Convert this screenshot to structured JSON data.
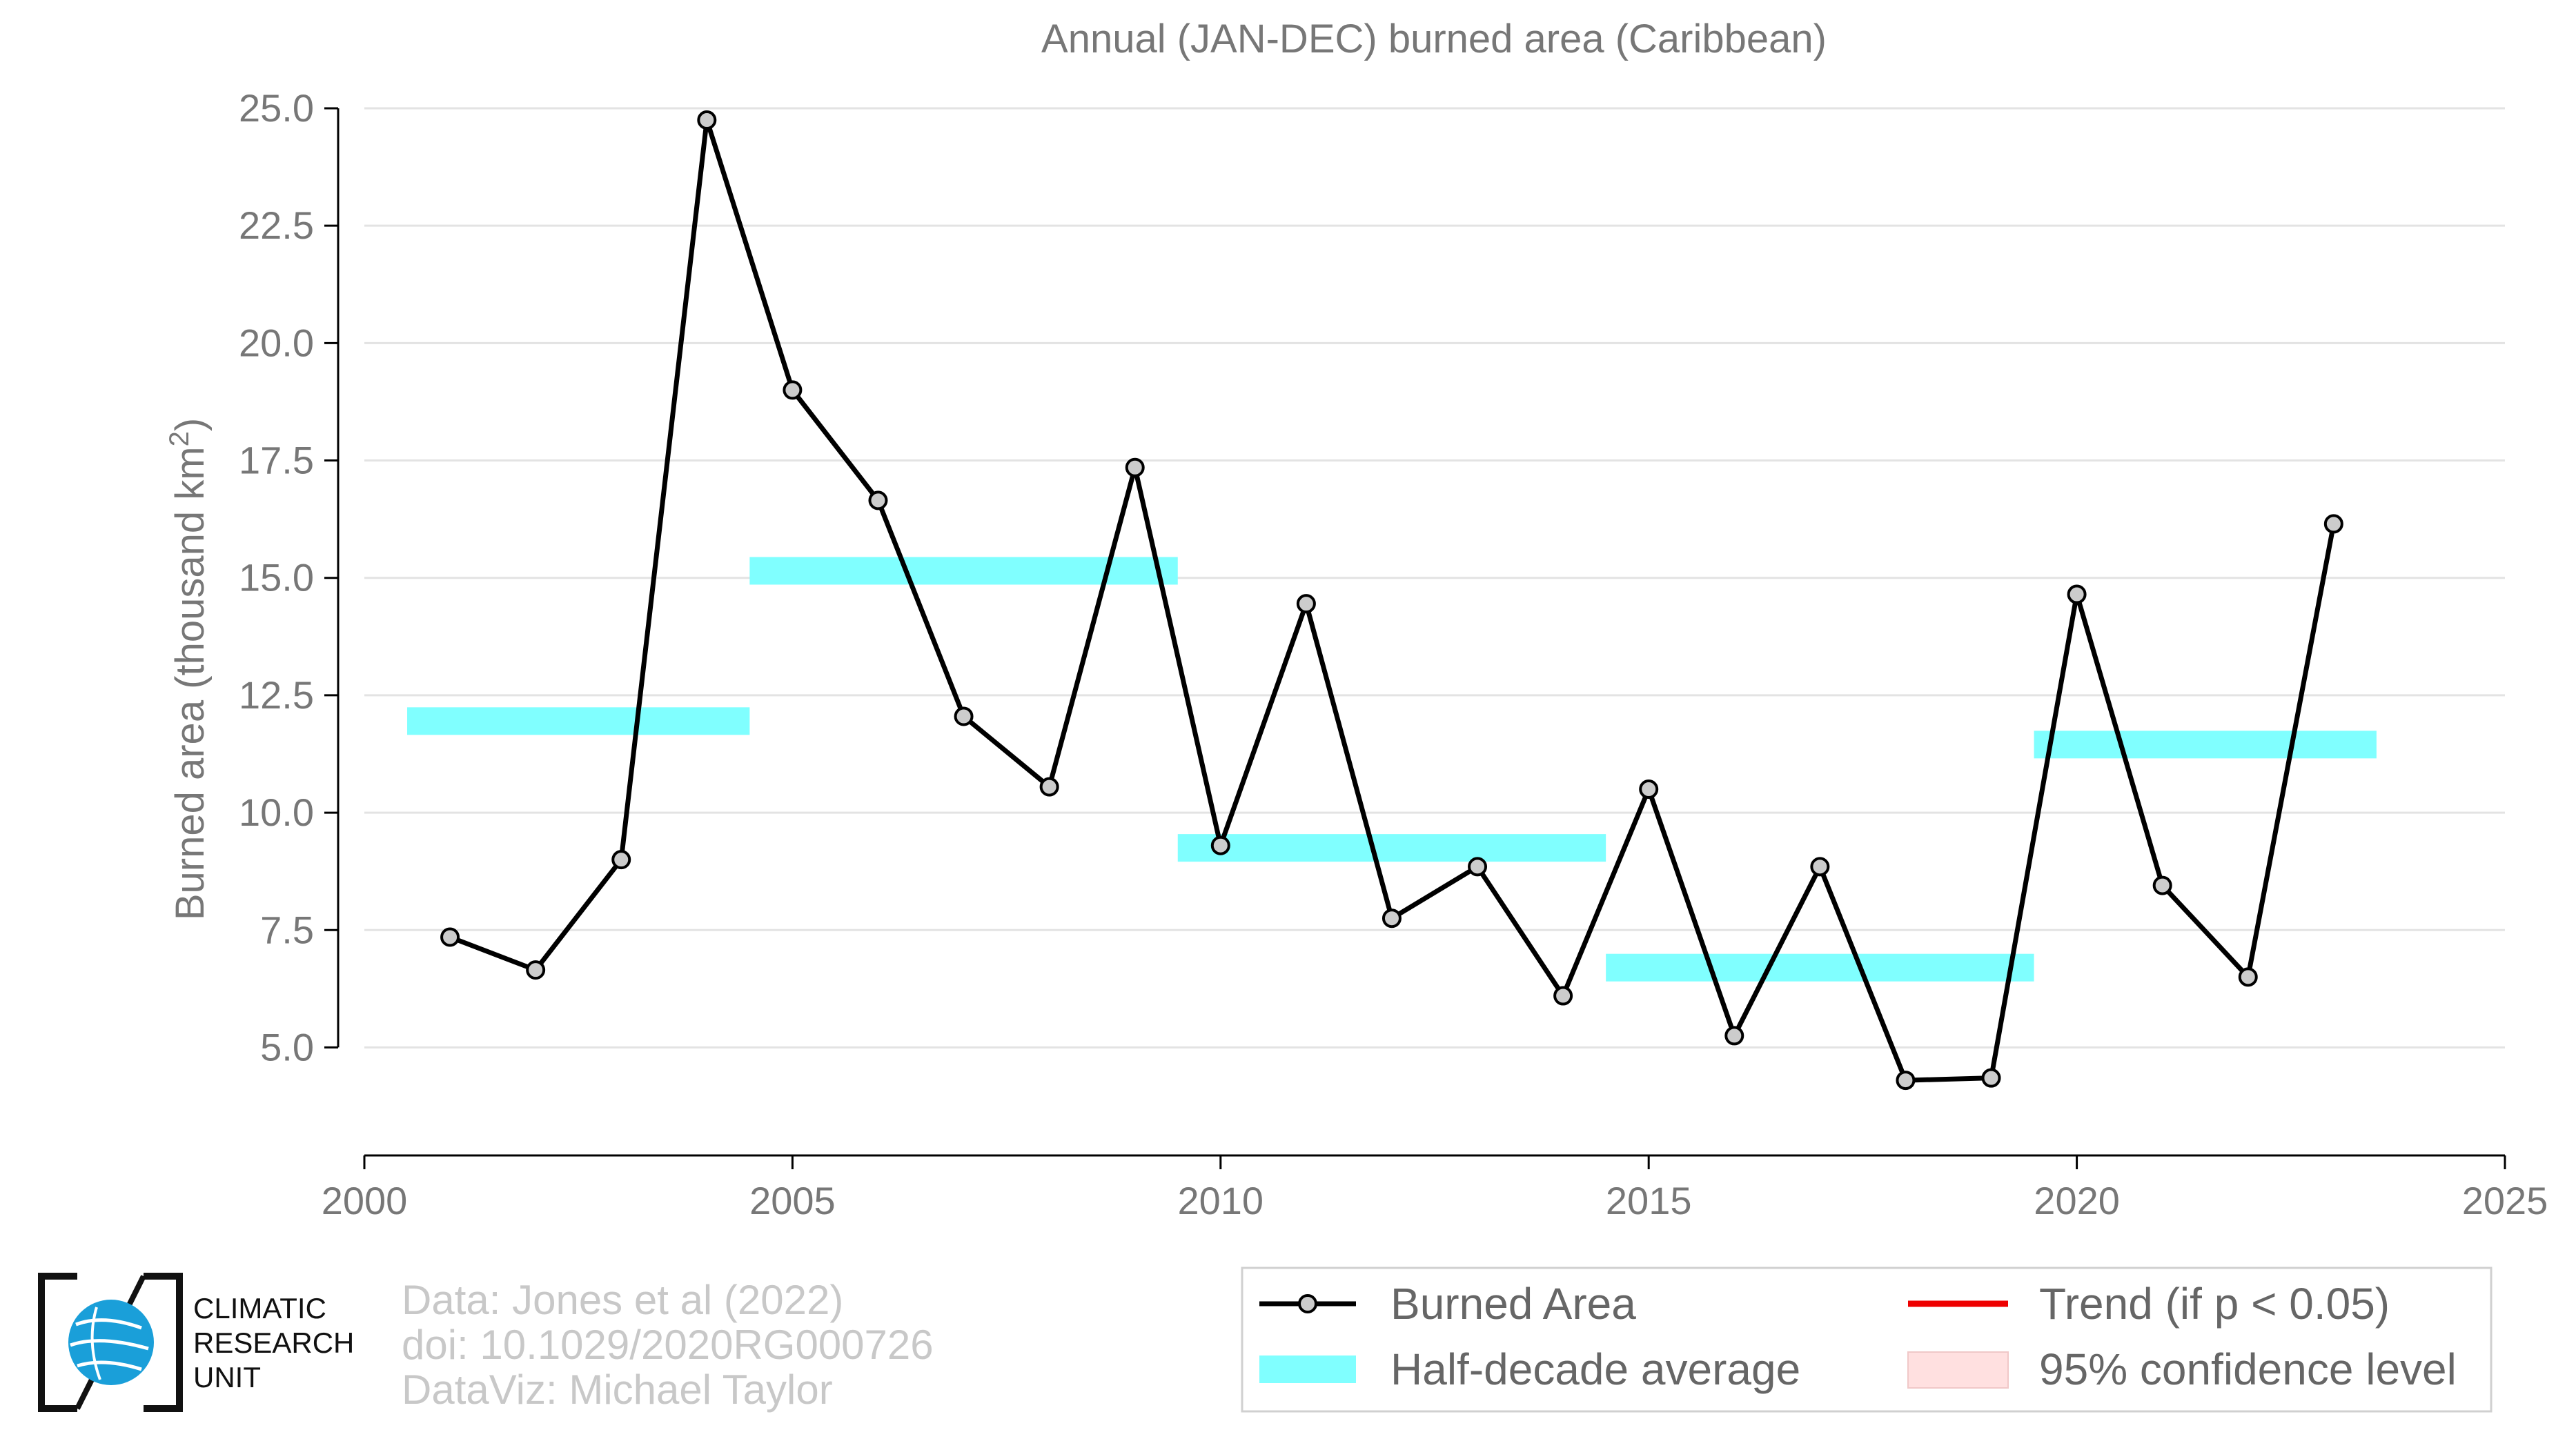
{
  "chart_data": {
    "type": "line",
    "title": "Annual (JAN-DEC) burned area (Caribbean)",
    "ylabel": "Burned area (thousand km",
    "ylabel_sup": "2",
    "ylabel_close": ")",
    "xlim": [
      2000,
      2025
    ],
    "ylim": [
      2.7,
      25.0
    ],
    "x_ticks": [
      2000,
      2005,
      2010,
      2015,
      2020,
      2025
    ],
    "x_tick_labels": [
      "2000",
      "2005",
      "2010",
      "2015",
      "2020",
      "2025"
    ],
    "y_ticks": [
      5.0,
      7.5,
      10.0,
      12.5,
      15.0,
      17.5,
      20.0,
      22.5,
      25.0
    ],
    "y_tick_labels": [
      "5.0",
      "7.5",
      "10.0",
      "12.5",
      "15.0",
      "17.5",
      "20.0",
      "22.5",
      "25.0"
    ],
    "grid": "horizontal",
    "series": [
      {
        "name": "Burned Area",
        "color": "#000000",
        "marker_fill": "#cccccc",
        "x": [
          2001,
          2002,
          2003,
          2004,
          2005,
          2006,
          2007,
          2008,
          2009,
          2010,
          2011,
          2012,
          2013,
          2014,
          2015,
          2016,
          2017,
          2018,
          2019,
          2020,
          2021,
          2022,
          2023
        ],
        "y": [
          7.35,
          6.65,
          9.0,
          24.75,
          19.0,
          16.65,
          12.05,
          10.55,
          17.35,
          9.3,
          14.45,
          7.75,
          8.85,
          6.1,
          10.5,
          5.25,
          8.85,
          4.3,
          4.35,
          14.65,
          8.45,
          6.5,
          16.15
        ]
      }
    ],
    "half_decade_averages": [
      {
        "x_start": 2000.5,
        "x_end": 2004.5,
        "value": 11.95
      },
      {
        "x_start": 2004.5,
        "x_end": 2009.5,
        "value": 15.15
      },
      {
        "x_start": 2009.5,
        "x_end": 2014.5,
        "value": 9.25
      },
      {
        "x_start": 2014.5,
        "x_end": 2019.5,
        "value": 6.7
      },
      {
        "x_start": 2019.5,
        "x_end": 2023.5,
        "value": 11.45
      }
    ],
    "half_decade_color": "#80ffff",
    "trend_color": "#ee0000",
    "confidence_color": "#ffe0e0",
    "legend": {
      "placement": "bottom-right",
      "entries": [
        "Burned Area",
        "Trend (if p < 0.05)",
        "Half-decade average",
        "95% confidence level"
      ]
    }
  },
  "credits": {
    "line1": "Data: Jones et al (2022)",
    "line2": "doi: 10.1029/2020RG000726",
    "line3": "DataViz: Michael Taylor"
  },
  "logo": {
    "line1": "CLIMATIC",
    "line2": "RESEARCH",
    "line3": "UNIT",
    "icon": "globe-icon",
    "color": "#1a9fd9"
  }
}
